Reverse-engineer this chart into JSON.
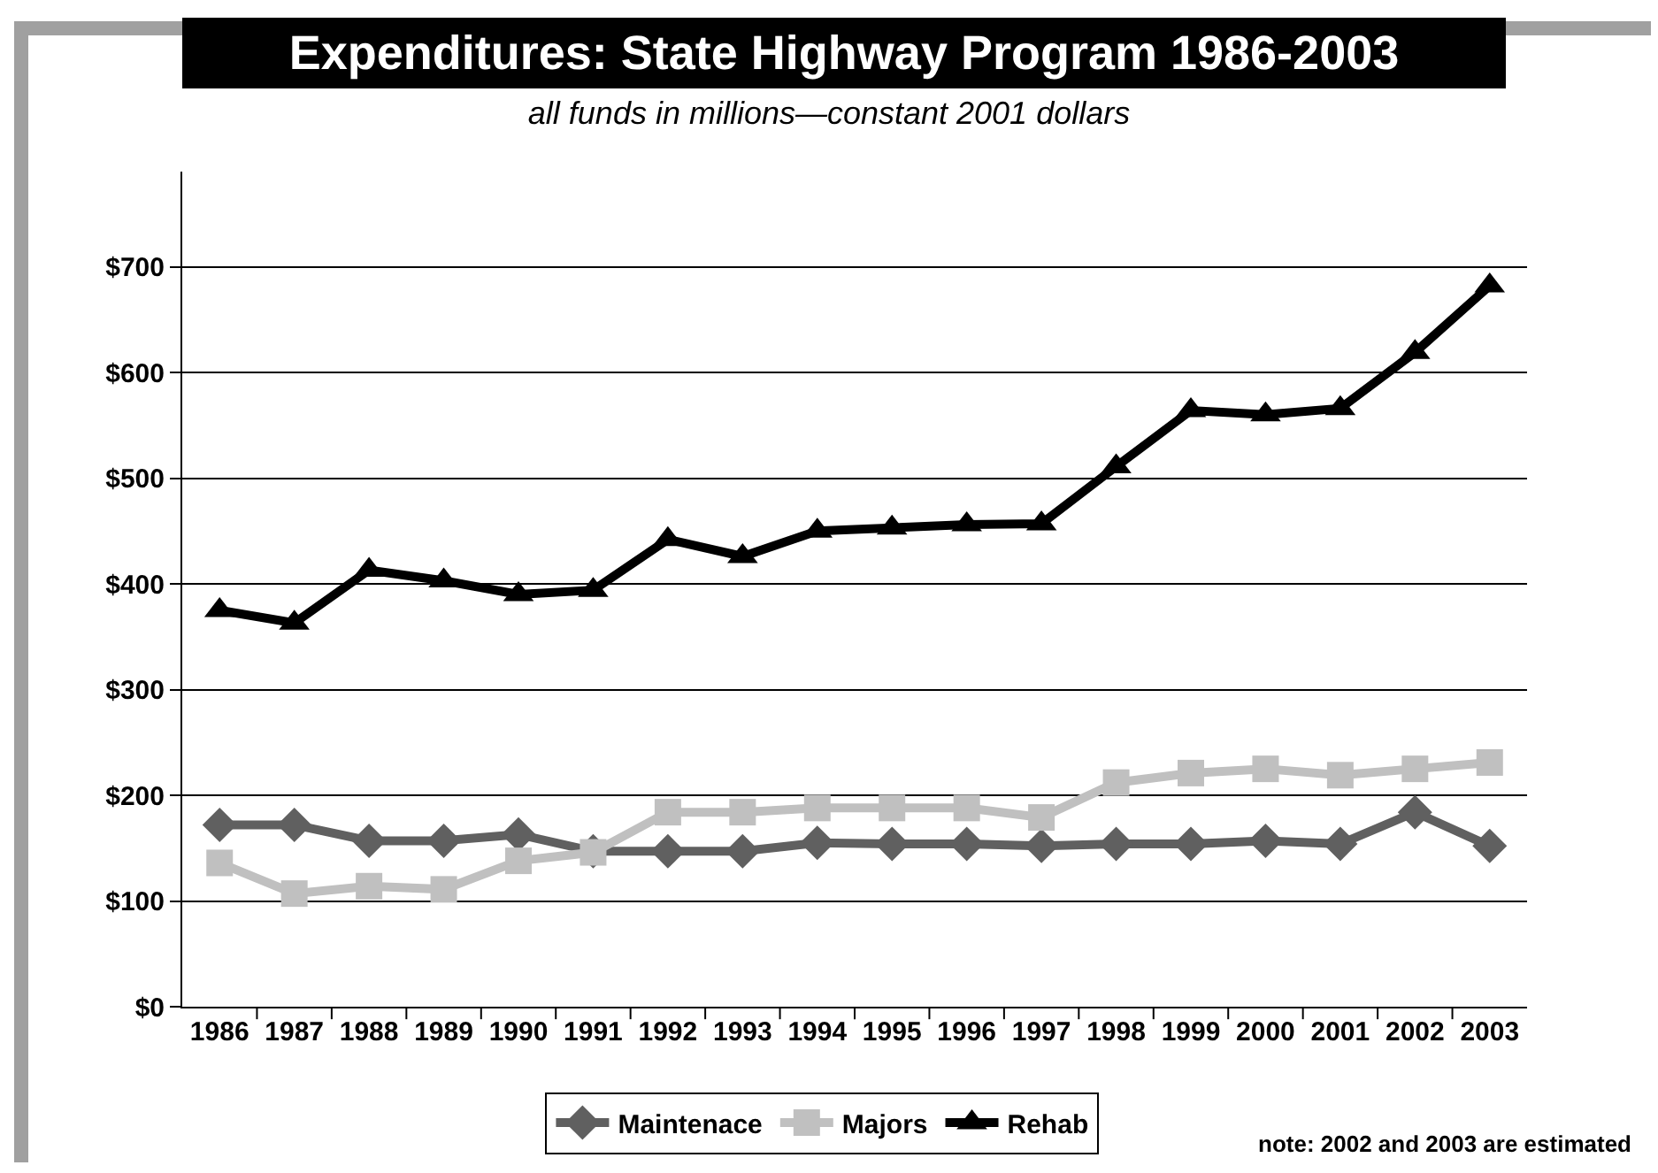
{
  "chart_data": {
    "type": "line",
    "title": "Expenditures: State Highway Program 1986-2003",
    "subtitle": "all funds in millions—constant 2001 dollars",
    "categories": [
      "1986",
      "1987",
      "1988",
      "1989",
      "1990",
      "1991",
      "1992",
      "1993",
      "1994",
      "1995",
      "1996",
      "1997",
      "1998",
      "1999",
      "2000",
      "2001",
      "2002",
      "2003"
    ],
    "series": [
      {
        "name": "Maintenace",
        "color": "#606060",
        "marker": "diamond",
        "values": [
          172,
          172,
          157,
          157,
          163,
          147,
          147,
          147,
          155,
          154,
          154,
          152,
          154,
          154,
          157,
          154,
          184,
          152
        ]
      },
      {
        "name": "Majors",
        "color": "#c0c0c0",
        "marker": "square",
        "values": [
          136,
          107,
          114,
          111,
          138,
          146,
          184,
          184,
          188,
          188,
          188,
          179,
          212,
          221,
          225,
          219,
          225,
          231
        ]
      },
      {
        "name": "Rehab",
        "color": "#000000",
        "marker": "triangle",
        "values": [
          375,
          363,
          413,
          403,
          390,
          394,
          442,
          426,
          450,
          453,
          456,
          457,
          511,
          564,
          560,
          566,
          619,
          682
        ]
      }
    ],
    "ylim": [
      0,
      790
    ],
    "yticks": [
      {
        "value": 0,
        "label": "$0"
      },
      {
        "value": 100,
        "label": "$100"
      },
      {
        "value": 200,
        "label": "$200"
      },
      {
        "value": 300,
        "label": "$300"
      },
      {
        "value": 400,
        "label": "$400"
      },
      {
        "value": 500,
        "label": "$500"
      },
      {
        "value": 600,
        "label": "$600"
      },
      {
        "value": 700,
        "label": "$700"
      }
    ],
    "grid": "y",
    "legend": "bottom",
    "line_style": "solid",
    "annotations": [
      "note: 2002 and 2003 are estimated"
    ]
  }
}
